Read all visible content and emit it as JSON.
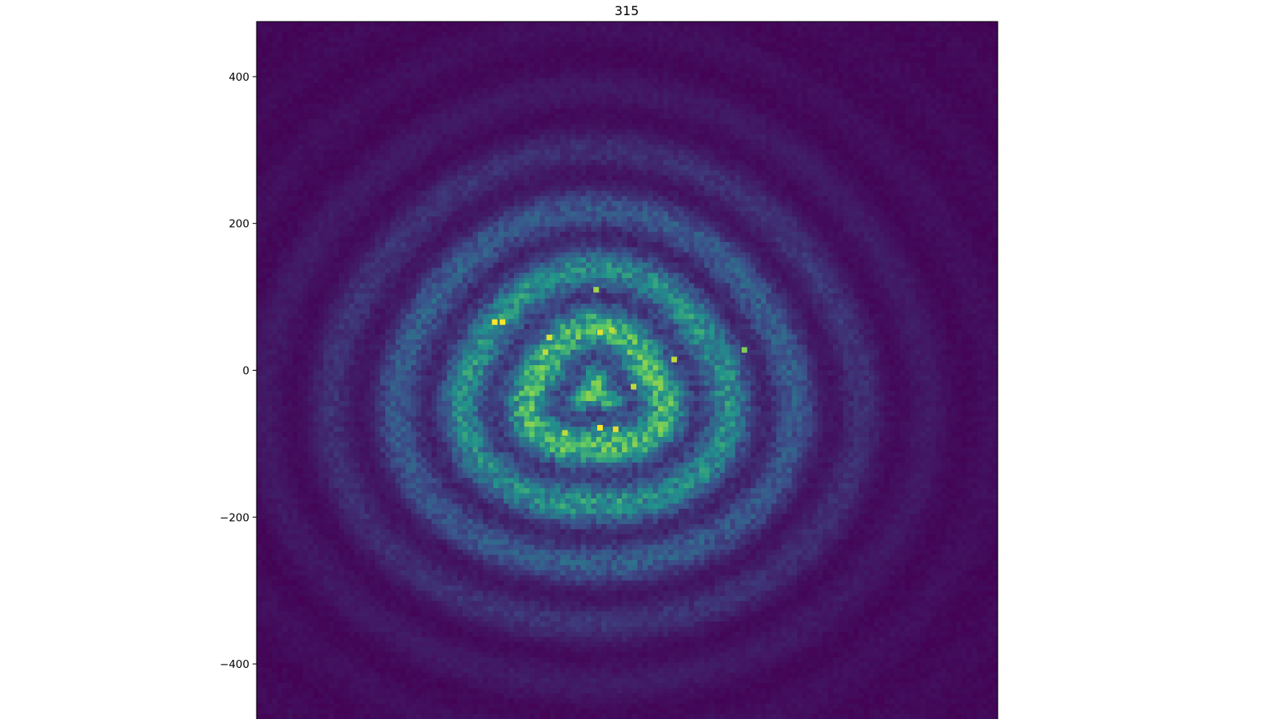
{
  "chart_data": {
    "type": "heatmap",
    "title": "315",
    "xlabel": "",
    "ylabel": "",
    "xlim": [
      -475,
      475
    ],
    "ylim": [
      -475,
      475
    ],
    "yticks": [
      {
        "value": 400,
        "label": "400"
      },
      {
        "value": 200,
        "label": "200"
      },
      {
        "value": 0,
        "label": "0"
      },
      {
        "value": -200,
        "label": "−200"
      },
      {
        "value": -400,
        "label": "−400"
      }
    ],
    "xticks": [],
    "grid": false,
    "legend": "none",
    "colormap": "viridis",
    "colormap_stops": [
      "#440154",
      "#3b528b",
      "#21918c",
      "#5ec962",
      "#fde725"
    ],
    "grid_size": [
      144,
      136
    ],
    "pattern": "concentric rings of intensity centred near (-40, -30), brightest within radius ~200, fading to dark purple at edges",
    "hotspots": [
      {
        "x": -170,
        "y": 66,
        "value": 1.0
      },
      {
        "x": -160,
        "y": 66,
        "value": 1.0
      },
      {
        "x": -100,
        "y": 45,
        "value": 0.95
      },
      {
        "x": -105,
        "y": 25,
        "value": 0.9
      },
      {
        "x": -35,
        "y": 52,
        "value": 0.95
      },
      {
        "x": -20,
        "y": 55,
        "value": 0.9
      },
      {
        "x": 60,
        "y": 15,
        "value": 0.9
      },
      {
        "x": 8,
        "y": -22,
        "value": 0.9
      },
      {
        "x": -35,
        "y": -78,
        "value": 1.0
      },
      {
        "x": -15,
        "y": -80,
        "value": 0.95
      },
      {
        "x": -80,
        "y": -85,
        "value": 0.9
      },
      {
        "x": -40,
        "y": 110,
        "value": 0.85
      },
      {
        "x": 150,
        "y": 28,
        "value": 0.8
      }
    ]
  }
}
